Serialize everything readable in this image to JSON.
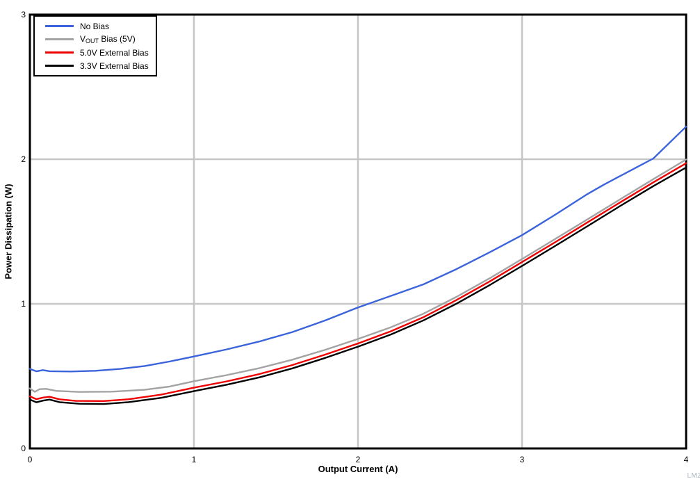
{
  "watermark": "LMZ",
  "chart_data": {
    "type": "line",
    "title": "",
    "xlabel": "Output Current (A)",
    "ylabel": "Power Dissipation (W)",
    "xlim": [
      0,
      4
    ],
    "ylim": [
      0,
      3
    ],
    "x_ticks": [
      0,
      1,
      2,
      3,
      4
    ],
    "y_ticks": [
      0,
      1,
      2,
      3
    ],
    "grid": true,
    "grid_color": "#c6c6c6",
    "frame_color": "#000000",
    "legend_position": "top-left",
    "series": [
      {
        "name": "no-bias",
        "label": "No Bias",
        "color": "#3b63db",
        "points": [
          [
            0,
            0.55
          ],
          [
            0.04,
            0.533
          ],
          [
            0.08,
            0.542
          ],
          [
            0.12,
            0.534
          ],
          [
            0.25,
            0.532
          ],
          [
            0.4,
            0.537
          ],
          [
            0.55,
            0.55
          ],
          [
            0.7,
            0.57
          ],
          [
            0.85,
            0.601
          ],
          [
            1.0,
            0.636
          ],
          [
            1.2,
            0.685
          ],
          [
            1.4,
            0.74
          ],
          [
            1.6,
            0.805
          ],
          [
            1.8,
            0.885
          ],
          [
            2.0,
            0.975
          ],
          [
            2.2,
            1.055
          ],
          [
            2.4,
            1.135
          ],
          [
            2.6,
            1.24
          ],
          [
            2.8,
            1.355
          ],
          [
            3.0,
            1.475
          ],
          [
            3.2,
            1.615
          ],
          [
            3.4,
            1.76
          ],
          [
            3.5,
            1.825
          ],
          [
            3.7,
            1.945
          ],
          [
            3.8,
            2.005
          ],
          [
            4.0,
            2.225
          ]
        ]
      },
      {
        "name": "vout-bias",
        "label": "VOUT Bias (5V)",
        "label_parts": [
          {
            "t": "V"
          },
          {
            "t": "OUT",
            "sub": true
          },
          {
            "t": " Bias (5V)"
          }
        ],
        "color": "#a3a3a3",
        "points": [
          [
            0,
            0.415
          ],
          [
            0.03,
            0.392
          ],
          [
            0.06,
            0.41
          ],
          [
            0.1,
            0.412
          ],
          [
            0.16,
            0.398
          ],
          [
            0.3,
            0.391
          ],
          [
            0.5,
            0.393
          ],
          [
            0.7,
            0.406
          ],
          [
            0.85,
            0.428
          ],
          [
            1.0,
            0.465
          ],
          [
            1.2,
            0.507
          ],
          [
            1.4,
            0.556
          ],
          [
            1.6,
            0.614
          ],
          [
            1.8,
            0.682
          ],
          [
            2.0,
            0.757
          ],
          [
            2.2,
            0.838
          ],
          [
            2.4,
            0.932
          ],
          [
            2.6,
            1.048
          ],
          [
            2.8,
            1.175
          ],
          [
            3.0,
            1.31
          ],
          [
            3.2,
            1.447
          ],
          [
            3.4,
            1.585
          ],
          [
            3.6,
            1.724
          ],
          [
            3.8,
            1.862
          ],
          [
            4.0,
            1.998
          ]
        ]
      },
      {
        "name": "external-bias-5v",
        "label": "5.0V External Bias",
        "color": "#ee0000",
        "points": [
          [
            0,
            0.36
          ],
          [
            0.04,
            0.341
          ],
          [
            0.08,
            0.352
          ],
          [
            0.12,
            0.357
          ],
          [
            0.18,
            0.34
          ],
          [
            0.28,
            0.329
          ],
          [
            0.45,
            0.328
          ],
          [
            0.6,
            0.34
          ],
          [
            0.8,
            0.372
          ],
          [
            1.0,
            0.42
          ],
          [
            1.2,
            0.464
          ],
          [
            1.4,
            0.515
          ],
          [
            1.6,
            0.577
          ],
          [
            1.8,
            0.649
          ],
          [
            2.0,
            0.726
          ],
          [
            2.2,
            0.81
          ],
          [
            2.4,
            0.908
          ],
          [
            2.6,
            1.026
          ],
          [
            2.8,
            1.153
          ],
          [
            3.0,
            1.289
          ],
          [
            3.2,
            1.425
          ],
          [
            3.4,
            1.564
          ],
          [
            3.6,
            1.703
          ],
          [
            3.8,
            1.84
          ],
          [
            4.0,
            1.972
          ]
        ]
      },
      {
        "name": "external-bias-3v3",
        "label": "3.3V External Bias",
        "color": "#000000",
        "points": [
          [
            0,
            0.338
          ],
          [
            0.04,
            0.319
          ],
          [
            0.08,
            0.331
          ],
          [
            0.12,
            0.338
          ],
          [
            0.18,
            0.32
          ],
          [
            0.3,
            0.309
          ],
          [
            0.45,
            0.307
          ],
          [
            0.6,
            0.32
          ],
          [
            0.8,
            0.35
          ],
          [
            1.0,
            0.396
          ],
          [
            1.2,
            0.441
          ],
          [
            1.4,
            0.492
          ],
          [
            1.6,
            0.554
          ],
          [
            1.8,
            0.626
          ],
          [
            2.0,
            0.704
          ],
          [
            2.2,
            0.788
          ],
          [
            2.4,
            0.886
          ],
          [
            2.6,
            1.001
          ],
          [
            2.8,
            1.128
          ],
          [
            3.0,
            1.262
          ],
          [
            3.2,
            1.399
          ],
          [
            3.4,
            1.538
          ],
          [
            3.6,
            1.678
          ],
          [
            3.8,
            1.814
          ],
          [
            4.0,
            1.943
          ]
        ]
      }
    ]
  }
}
